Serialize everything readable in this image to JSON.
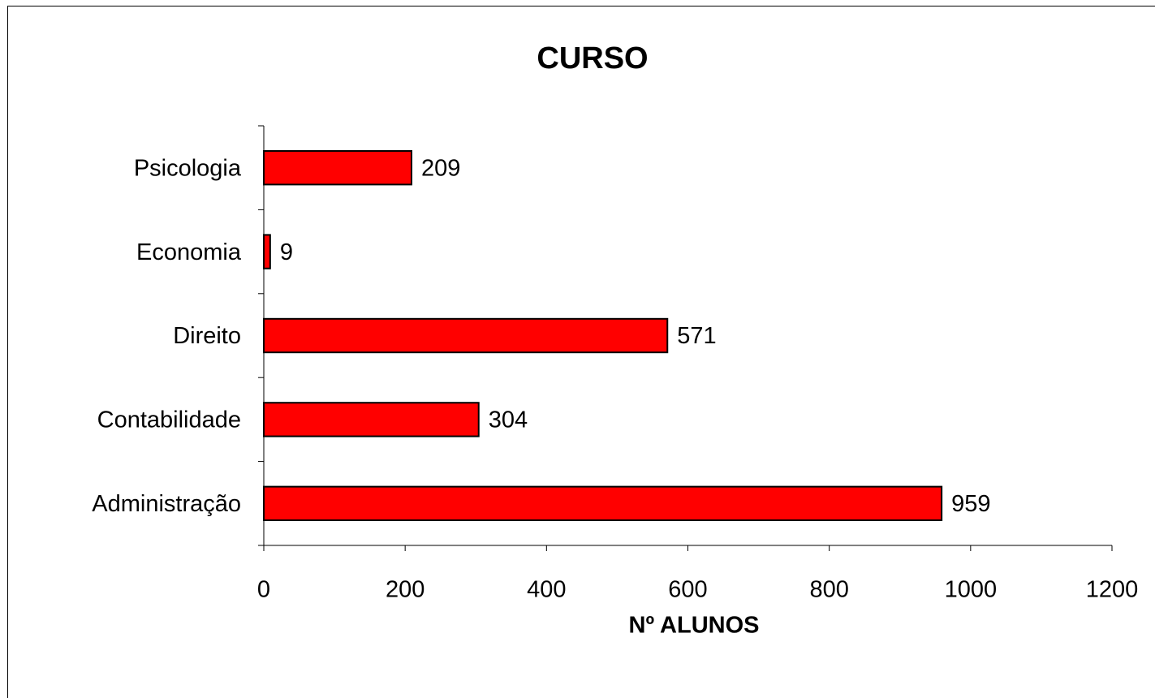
{
  "chart_data": {
    "type": "bar",
    "orientation": "horizontal",
    "title": "CURSO",
    "x_label": "Nº ALUNOS",
    "categories": [
      "Administração",
      "Contabilidade",
      "Direito",
      "Economia",
      "Psicologia"
    ],
    "values": [
      959,
      304,
      571,
      9,
      209
    ],
    "color": "#ff0000",
    "xlim": [
      0,
      1200
    ],
    "xticks": [
      0,
      200,
      400,
      600,
      800,
      1000,
      1200
    ],
    "grid": false
  }
}
